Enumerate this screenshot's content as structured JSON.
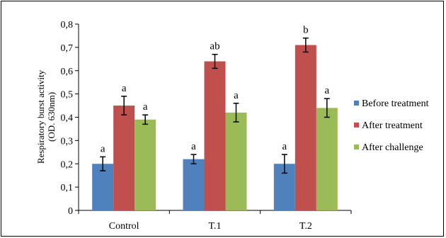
{
  "chart_data": {
    "type": "bar",
    "ylabel_line1": "Respiratory burst activity",
    "ylabel_line2": "(OD. 630nm)",
    "ylim": [
      0,
      0.8
    ],
    "yticks": [
      "0",
      "0,1",
      "0,2",
      "0,3",
      "0,4",
      "0,5",
      "0,6",
      "0,7",
      "0,8"
    ],
    "ytick_values": [
      0,
      0.1,
      0.2,
      0.3,
      0.4,
      0.5,
      0.6,
      0.7,
      0.8
    ],
    "categories": [
      "Control",
      "T.1",
      "T.2"
    ],
    "grid": false,
    "legend_position": "right",
    "series": [
      {
        "name": "Before treatment",
        "color": "#4f81bd",
        "values": [
          0.2,
          0.22,
          0.2
        ],
        "errors": [
          0.03,
          0.02,
          0.04
        ],
        "labels": [
          "a",
          "a",
          "a"
        ]
      },
      {
        "name": "After treatment",
        "color": "#c0504d",
        "values": [
          0.45,
          0.64,
          0.71
        ],
        "errors": [
          0.04,
          0.03,
          0.03
        ],
        "labels": [
          "a",
          "ab",
          "b"
        ]
      },
      {
        "name": "After challenge",
        "color": "#9bbb59",
        "values": [
          0.39,
          0.42,
          0.44
        ],
        "errors": [
          0.02,
          0.04,
          0.04
        ],
        "labels": [
          "a",
          "a",
          "a"
        ]
      }
    ]
  }
}
